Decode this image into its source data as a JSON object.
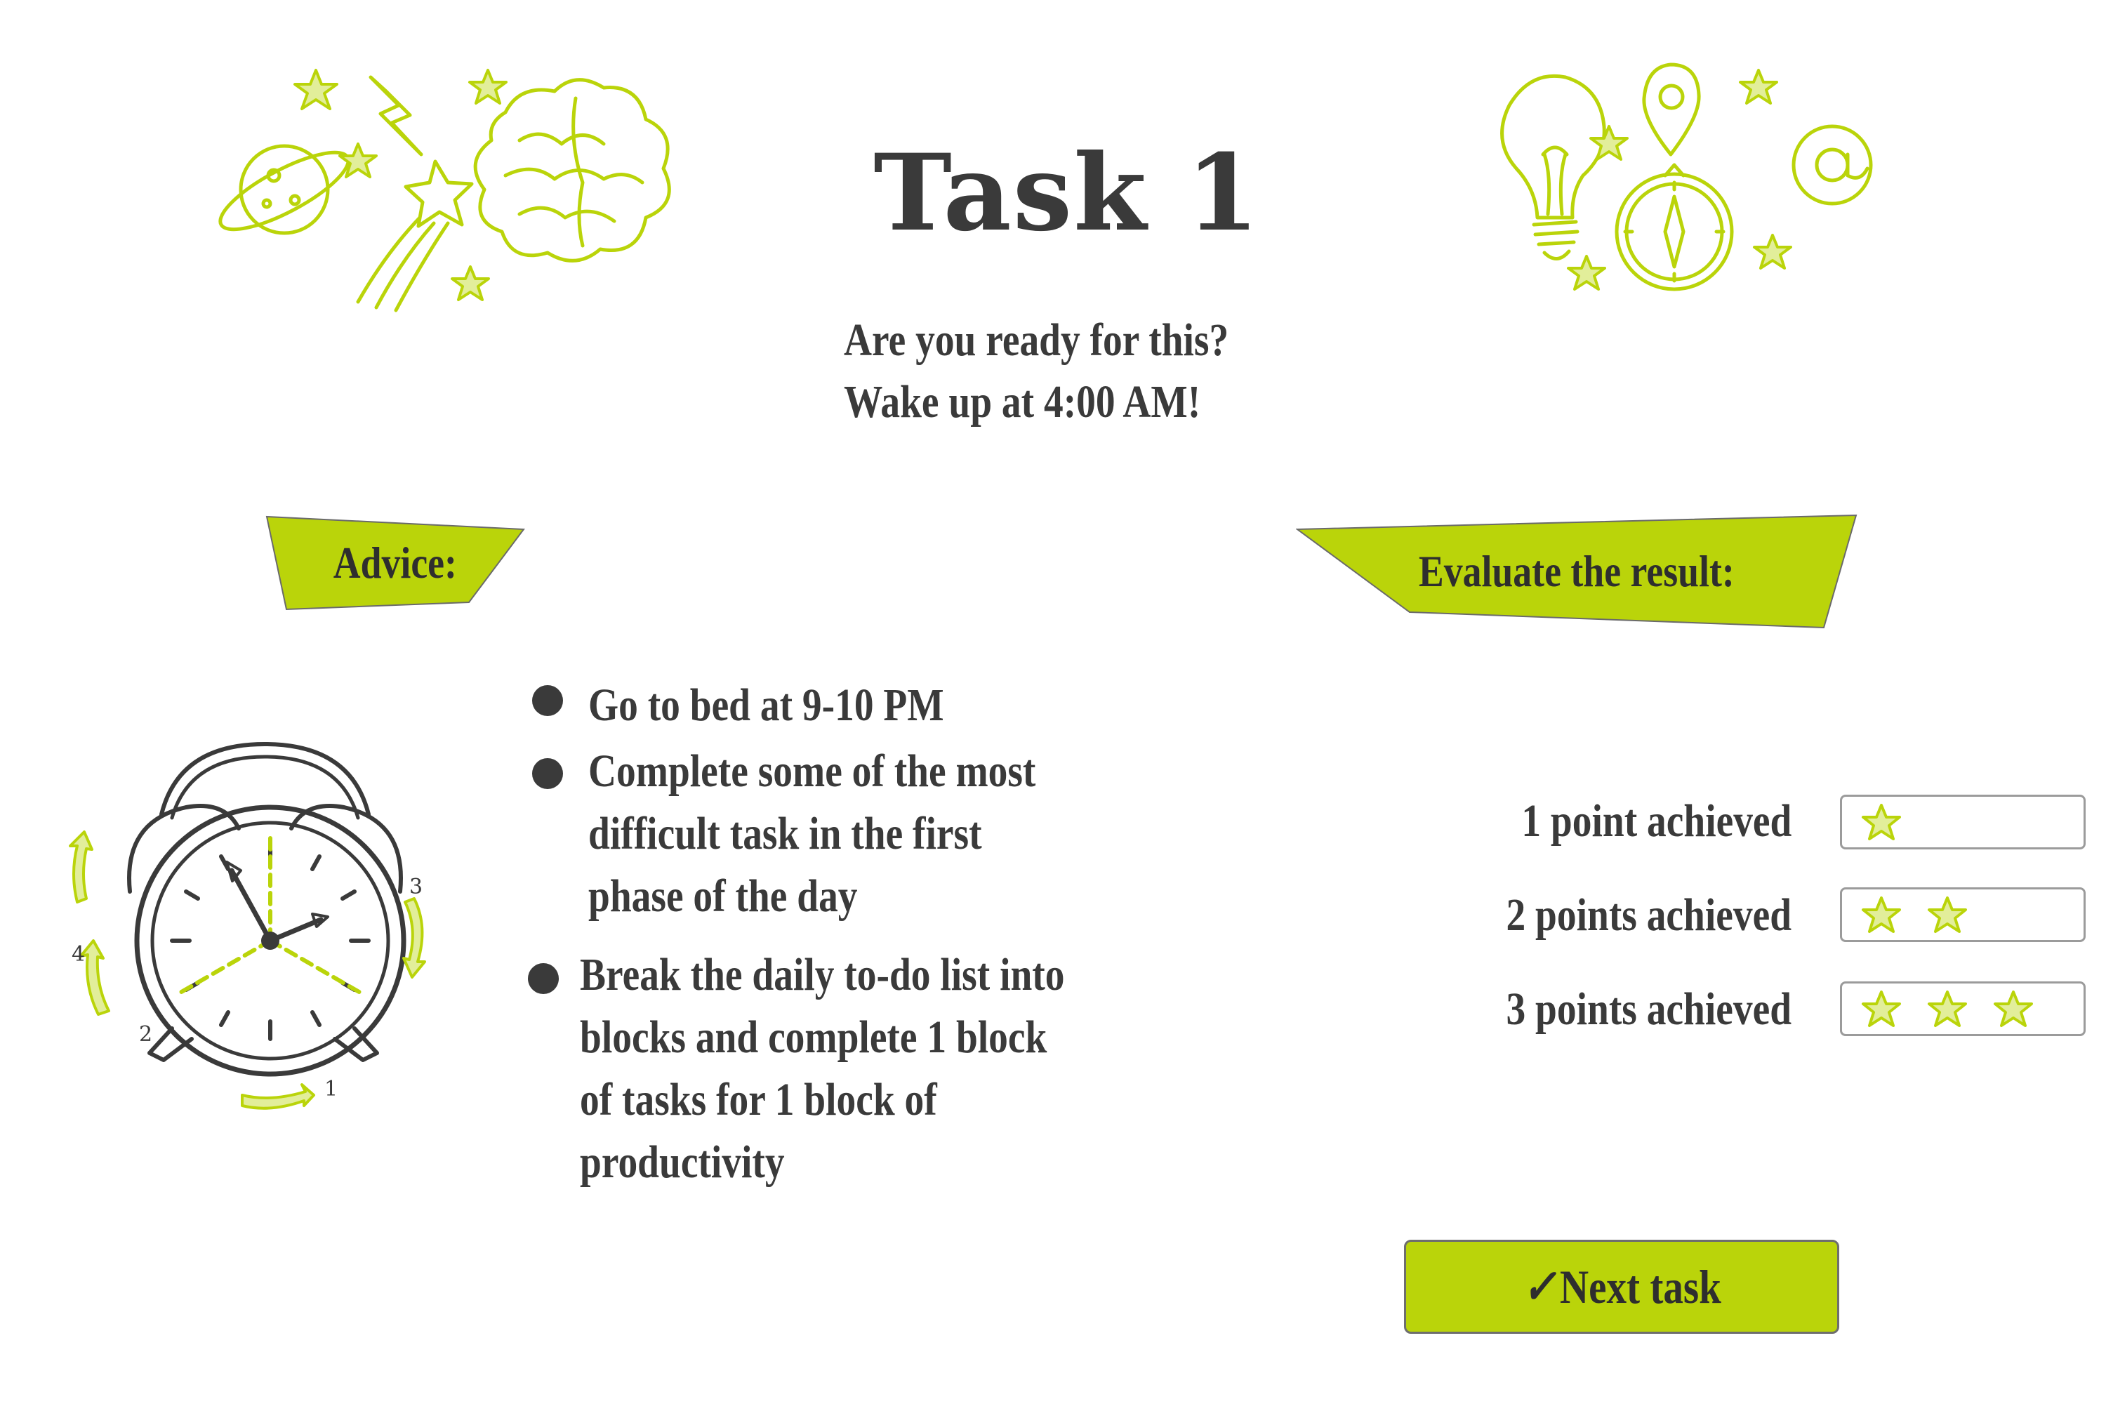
{
  "header": {
    "title": "Task 1",
    "intro_lines": [
      "Are you ready for this?",
      "Wake up at 4:00 AM!"
    ]
  },
  "advice": {
    "label": "Advice:",
    "items": [
      [
        "Go to bed at 9-10 PM"
      ],
      [
        "Complete some of the most",
        "difficult task in the first",
        "phase of the day"
      ],
      [
        "Break the daily to-do list into",
        "blocks and complete 1 block",
        "of tasks for 1 block of",
        "productivity"
      ]
    ],
    "clock_numbers": [
      "1",
      "2",
      "3",
      "4"
    ]
  },
  "evaluate": {
    "label": "Evaluate the result:",
    "ratings": [
      {
        "label": "1 point achieved",
        "stars": 1
      },
      {
        "label": "2 points achieved",
        "stars": 2
      },
      {
        "label": "3 points achieved",
        "stars": 3
      }
    ]
  },
  "next_button": {
    "check": "✓",
    "label": "Next task"
  },
  "colors": {
    "accent": "#bad40a",
    "text": "#3a3a3a"
  },
  "icons": [
    "planet-icon",
    "lightning-icon",
    "shooting-star-icon",
    "brain-icon",
    "lightbulb-icon",
    "location-pin-icon",
    "compass-icon",
    "at-sign-icon",
    "alarm-clock-icon",
    "star-icon"
  ]
}
